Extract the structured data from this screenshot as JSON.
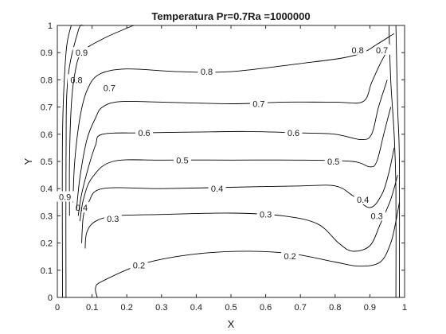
{
  "chart_data": {
    "type": "contour",
    "title": "Temperatura Pr=0.7Ra =1000000",
    "xlabel": "X",
    "ylabel": "Y",
    "xlim": [
      0,
      1
    ],
    "ylim": [
      0,
      1
    ],
    "xticks": [
      "0",
      "0.1",
      "0.2",
      "0.3",
      "0.4",
      "0.5",
      "0.6",
      "0.7",
      "0.8",
      "0.9",
      "1"
    ],
    "yticks": [
      "0",
      "0.1",
      "0.2",
      "0.3",
      "0.4",
      "0.5",
      "0.6",
      "0.7",
      "0.8",
      "0.9",
      "1"
    ],
    "grid": false,
    "line_color": "#000000",
    "levels": [
      {
        "value": 0.2,
        "label": "0.2",
        "points": [
          [
            0.115,
            0.0
          ],
          [
            0.11,
            0.035
          ],
          [
            0.13,
            0.06
          ],
          [
            0.25,
            0.125
          ],
          [
            0.4,
            0.16
          ],
          [
            0.55,
            0.17
          ],
          [
            0.68,
            0.16
          ],
          [
            0.8,
            0.13
          ],
          [
            0.87,
            0.115
          ],
          [
            0.93,
            0.13
          ],
          [
            0.96,
            0.2
          ],
          [
            0.975,
            0.28
          ],
          [
            0.985,
            0.35
          ]
        ],
        "labels": [
          {
            "x": 0.235,
            "y": 0.118
          },
          {
            "x": 0.67,
            "y": 0.152
          }
        ]
      },
      {
        "value": 0.3,
        "label": "0.3",
        "points": [
          [
            0.08,
            0.18
          ],
          [
            0.085,
            0.24
          ],
          [
            0.11,
            0.28
          ],
          [
            0.17,
            0.3
          ],
          [
            0.3,
            0.305
          ],
          [
            0.5,
            0.31
          ],
          [
            0.65,
            0.3
          ],
          [
            0.75,
            0.27
          ],
          [
            0.81,
            0.2
          ],
          [
            0.85,
            0.17
          ],
          [
            0.9,
            0.19
          ],
          [
            0.93,
            0.27
          ],
          [
            0.96,
            0.36
          ],
          [
            0.98,
            0.45
          ]
        ],
        "labels": [
          {
            "x": 0.16,
            "y": 0.29
          },
          {
            "x": 0.6,
            "y": 0.305
          },
          {
            "x": 0.92,
            "y": 0.3
          }
        ]
      },
      {
        "value": 0.4,
        "label": "0.4",
        "points": [
          [
            0.07,
            0.2
          ],
          [
            0.075,
            0.3
          ],
          [
            0.09,
            0.35
          ],
          [
            0.13,
            0.4
          ],
          [
            0.3,
            0.4
          ],
          [
            0.5,
            0.405
          ],
          [
            0.7,
            0.41
          ],
          [
            0.8,
            0.41
          ],
          [
            0.85,
            0.375
          ],
          [
            0.9,
            0.33
          ],
          [
            0.935,
            0.38
          ],
          [
            0.955,
            0.46
          ],
          [
            0.97,
            0.55
          ]
        ],
        "labels": [
          {
            "x": 0.07,
            "y": 0.33
          },
          {
            "x": 0.46,
            "y": 0.4
          },
          {
            "x": 0.88,
            "y": 0.36
          }
        ]
      },
      {
        "value": 0.5,
        "label": "0.5",
        "points": [
          [
            0.065,
            0.28
          ],
          [
            0.075,
            0.36
          ],
          [
            0.1,
            0.44
          ],
          [
            0.16,
            0.5
          ],
          [
            0.3,
            0.505
          ],
          [
            0.5,
            0.505
          ],
          [
            0.7,
            0.505
          ],
          [
            0.85,
            0.5
          ],
          [
            0.9,
            0.48
          ],
          [
            0.92,
            0.5
          ],
          [
            0.94,
            0.6
          ],
          [
            0.96,
            0.7
          ]
        ],
        "labels": [
          {
            "x": 0.36,
            "y": 0.505
          },
          {
            "x": 0.795,
            "y": 0.5
          }
        ]
      },
      {
        "value": 0.6,
        "label": "0.6",
        "points": [
          [
            0.06,
            0.3
          ],
          [
            0.07,
            0.38
          ],
          [
            0.09,
            0.48
          ],
          [
            0.11,
            0.56
          ],
          [
            0.13,
            0.6
          ],
          [
            0.25,
            0.605
          ],
          [
            0.4,
            0.608
          ],
          [
            0.55,
            0.61
          ],
          [
            0.7,
            0.605
          ],
          [
            0.8,
            0.6
          ],
          [
            0.875,
            0.58
          ],
          [
            0.905,
            0.6
          ],
          [
            0.925,
            0.7
          ],
          [
            0.95,
            0.8
          ]
        ],
        "labels": [
          {
            "x": 0.25,
            "y": 0.605
          },
          {
            "x": 0.68,
            "y": 0.605
          }
        ]
      },
      {
        "value": 0.7,
        "label": "0.7",
        "points": [
          [
            0.055,
            0.32
          ],
          [
            0.065,
            0.44
          ],
          [
            0.085,
            0.58
          ],
          [
            0.11,
            0.66
          ],
          [
            0.13,
            0.7
          ],
          [
            0.18,
            0.72
          ],
          [
            0.3,
            0.718
          ],
          [
            0.5,
            0.712
          ],
          [
            0.65,
            0.718
          ],
          [
            0.8,
            0.718
          ],
          [
            0.88,
            0.72
          ],
          [
            0.905,
            0.79
          ],
          [
            0.93,
            0.86
          ],
          [
            0.96,
            0.93
          ]
        ],
        "labels": [
          {
            "x": 0.15,
            "y": 0.77
          },
          {
            "x": 0.58,
            "y": 0.712
          },
          {
            "x": 0.935,
            "y": 0.91
          }
        ]
      },
      {
        "value": 0.8,
        "label": "0.8",
        "points": [
          [
            0.045,
            0.35
          ],
          [
            0.05,
            0.5
          ],
          [
            0.065,
            0.66
          ],
          [
            0.085,
            0.76
          ],
          [
            0.12,
            0.82
          ],
          [
            0.2,
            0.84
          ],
          [
            0.35,
            0.83
          ],
          [
            0.5,
            0.83
          ],
          [
            0.7,
            0.86
          ],
          [
            0.82,
            0.88
          ],
          [
            0.88,
            0.9
          ],
          [
            0.92,
            0.93
          ],
          [
            0.97,
            0.97
          ]
        ],
        "labels": [
          {
            "x": 0.055,
            "y": 0.8
          },
          {
            "x": 0.43,
            "y": 0.83
          },
          {
            "x": 0.865,
            "y": 0.91
          }
        ]
      },
      {
        "value": 0.9,
        "label": "0.9",
        "points": [
          [
            0.035,
            0.3
          ],
          [
            0.035,
            0.5
          ],
          [
            0.04,
            0.7
          ],
          [
            0.05,
            0.82
          ],
          [
            0.07,
            0.9
          ],
          [
            0.13,
            0.95
          ],
          [
            0.2,
            0.99
          ],
          [
            0.22,
            1.0
          ]
        ],
        "labels": [
          {
            "x": 0.07,
            "y": 0.9
          },
          {
            "x": 0.022,
            "y": 0.37
          }
        ]
      }
    ],
    "wall_lines": [
      [
        [
          0.025,
          0.0
        ],
        [
          0.025,
          0.5
        ],
        [
          0.03,
          0.8
        ],
        [
          0.06,
          0.98
        ],
        [
          0.075,
          1.0
        ]
      ],
      [
        [
          0.015,
          0.0
        ],
        [
          0.015,
          0.6
        ],
        [
          0.025,
          0.9
        ],
        [
          0.04,
          1.0
        ]
      ],
      [
        [
          0.975,
          0.0
        ],
        [
          0.975,
          0.4
        ],
        [
          0.97,
          0.6
        ],
        [
          0.96,
          0.8
        ],
        [
          0.955,
          1.0
        ]
      ],
      [
        [
          0.985,
          0.0
        ],
        [
          0.985,
          0.5
        ],
        [
          0.98,
          0.7
        ],
        [
          0.975,
          1.0
        ]
      ]
    ]
  }
}
